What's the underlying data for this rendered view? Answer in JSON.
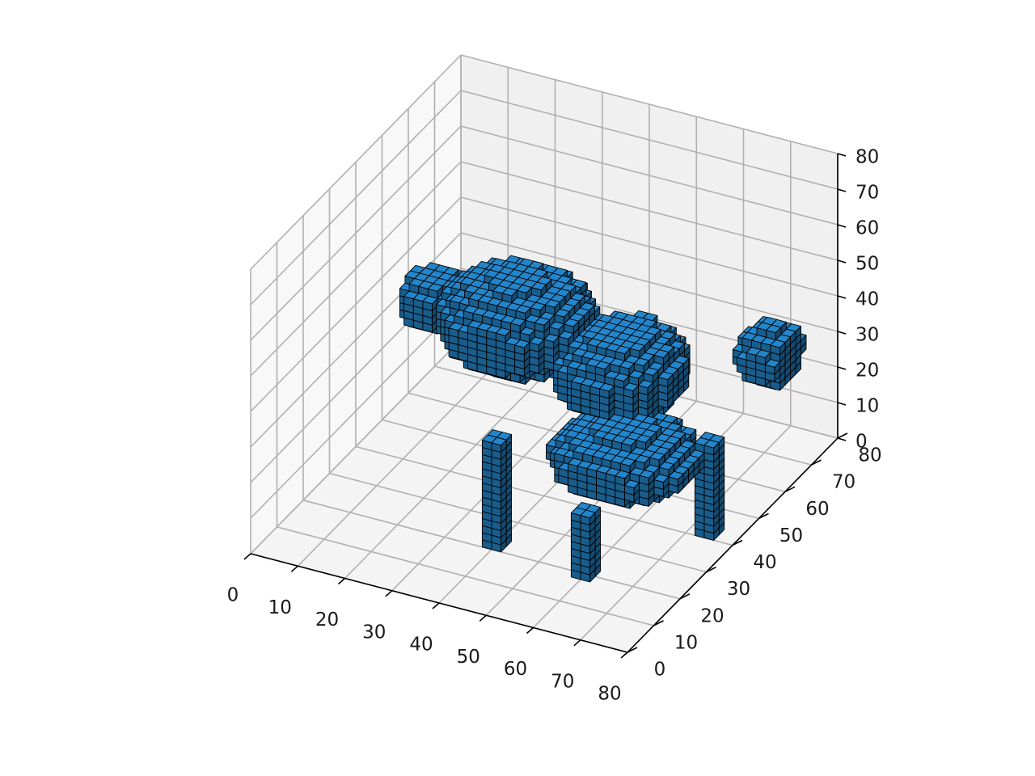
{
  "chart_data": {
    "type": "voxels",
    "title": "",
    "xlabel": "",
    "ylabel": "",
    "zlabel": "",
    "xlim": [
      0,
      80
    ],
    "ylim": [
      0,
      80
    ],
    "zlim": [
      0,
      80
    ],
    "x_ticks": [
      "0",
      "10",
      "20",
      "30",
      "40",
      "50",
      "60",
      "70",
      "80"
    ],
    "y_ticks": [
      "0",
      "10",
      "20",
      "30",
      "40",
      "50",
      "60",
      "70",
      "80"
    ],
    "z_ticks": [
      "0",
      "10",
      "20",
      "30",
      "40",
      "50",
      "60",
      "70",
      "80"
    ],
    "grid": true,
    "facecolor": "#1f77b4",
    "edgecolor": "#000000",
    "pane_colors": {
      "floor": "#f4f4f4",
      "left_wall": "#f8f8f8",
      "back_wall": "#f0f0f0"
    },
    "voxel_shape": {
      "description": "voxelized four-legged animal",
      "parts": [
        {
          "name": "head",
          "ellipsoid": {
            "center": [
              11,
              50,
              38
            ],
            "radii": [
              6,
              6,
              7
            ]
          }
        },
        {
          "name": "front-body",
          "ellipsoid": {
            "center": [
              30,
              48,
              40
            ],
            "radii": [
              15,
              13,
              12
            ]
          }
        },
        {
          "name": "mid-body",
          "ellipsoid": {
            "center": [
              52,
              48,
              34
            ],
            "radii": [
              12,
              12,
              11
            ]
          }
        },
        {
          "name": "rear-body",
          "ellipsoid": {
            "center": [
              60,
              35,
              22
            ],
            "radii": [
              14,
              12,
              8
            ]
          }
        },
        {
          "name": "tail",
          "ellipsoid": {
            "center": [
              76,
              62,
              36
            ],
            "radii": [
              6,
              6,
              8
            ]
          }
        },
        {
          "name": "leg-front",
          "box": {
            "x": [
              38,
              41
            ],
            "y": [
              20,
              23
            ],
            "z": [
              0,
              30
            ]
          }
        },
        {
          "name": "leg-middle",
          "box": {
            "x": [
              59,
              62
            ],
            "y": [
              18,
              21
            ],
            "z": [
              0,
              18
            ]
          }
        },
        {
          "name": "leg-rear",
          "box": {
            "x": [
              72,
              75
            ],
            "y": [
              40,
              43
            ],
            "z": [
              0,
              26
            ]
          }
        }
      ]
    }
  }
}
